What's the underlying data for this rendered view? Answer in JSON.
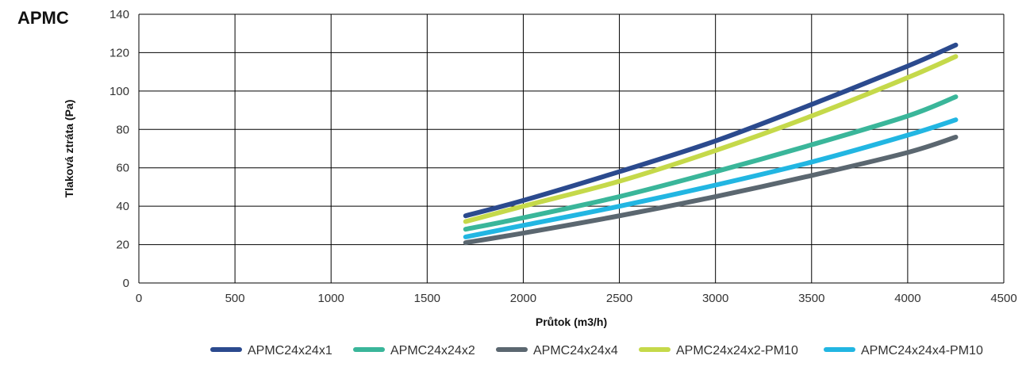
{
  "title": "APMC",
  "chart_data": {
    "type": "line",
    "xlabel": "Průtok (m3/h)",
    "ylabel": "Tlaková ztráta (Pa)",
    "xlim": [
      0,
      4500
    ],
    "ylim": [
      0,
      140
    ],
    "xticks": [
      0,
      500,
      1000,
      1500,
      2000,
      2500,
      3000,
      3500,
      4000,
      4500
    ],
    "yticks": [
      0,
      20,
      40,
      60,
      80,
      100,
      120,
      140
    ],
    "grid": true,
    "legend_position": "bottom",
    "series": [
      {
        "name": "APMC24x24x1",
        "color": "#2b4a8e",
        "points": [
          [
            1700,
            35
          ],
          [
            2000,
            43
          ],
          [
            2500,
            58
          ],
          [
            3000,
            74
          ],
          [
            3500,
            93
          ],
          [
            4000,
            113
          ],
          [
            4250,
            124
          ]
        ]
      },
      {
        "name": "APMC24x24x2",
        "color": "#3ab69a",
        "points": [
          [
            1700,
            28
          ],
          [
            2000,
            34
          ],
          [
            2500,
            45
          ],
          [
            3000,
            58
          ],
          [
            3500,
            72
          ],
          [
            4000,
            87
          ],
          [
            4250,
            97
          ]
        ]
      },
      {
        "name": "APMC24x24x4",
        "color": "#5b6770",
        "points": [
          [
            1700,
            21
          ],
          [
            2000,
            26
          ],
          [
            2500,
            35
          ],
          [
            3000,
            45
          ],
          [
            3500,
            56
          ],
          [
            4000,
            68
          ],
          [
            4250,
            76
          ]
        ]
      },
      {
        "name": "APMC24x24x2-PM10",
        "color": "#c5d94a",
        "points": [
          [
            1700,
            32
          ],
          [
            2000,
            40
          ],
          [
            2500,
            53
          ],
          [
            3000,
            69
          ],
          [
            3500,
            87
          ],
          [
            4000,
            107
          ],
          [
            4250,
            118
          ]
        ]
      },
      {
        "name": "APMC24x24x4-PM10",
        "color": "#22b6e2",
        "points": [
          [
            1700,
            24
          ],
          [
            2000,
            30
          ],
          [
            2500,
            40
          ],
          [
            3000,
            51
          ],
          [
            3500,
            63
          ],
          [
            4000,
            77
          ],
          [
            4250,
            85
          ]
        ]
      }
    ]
  }
}
